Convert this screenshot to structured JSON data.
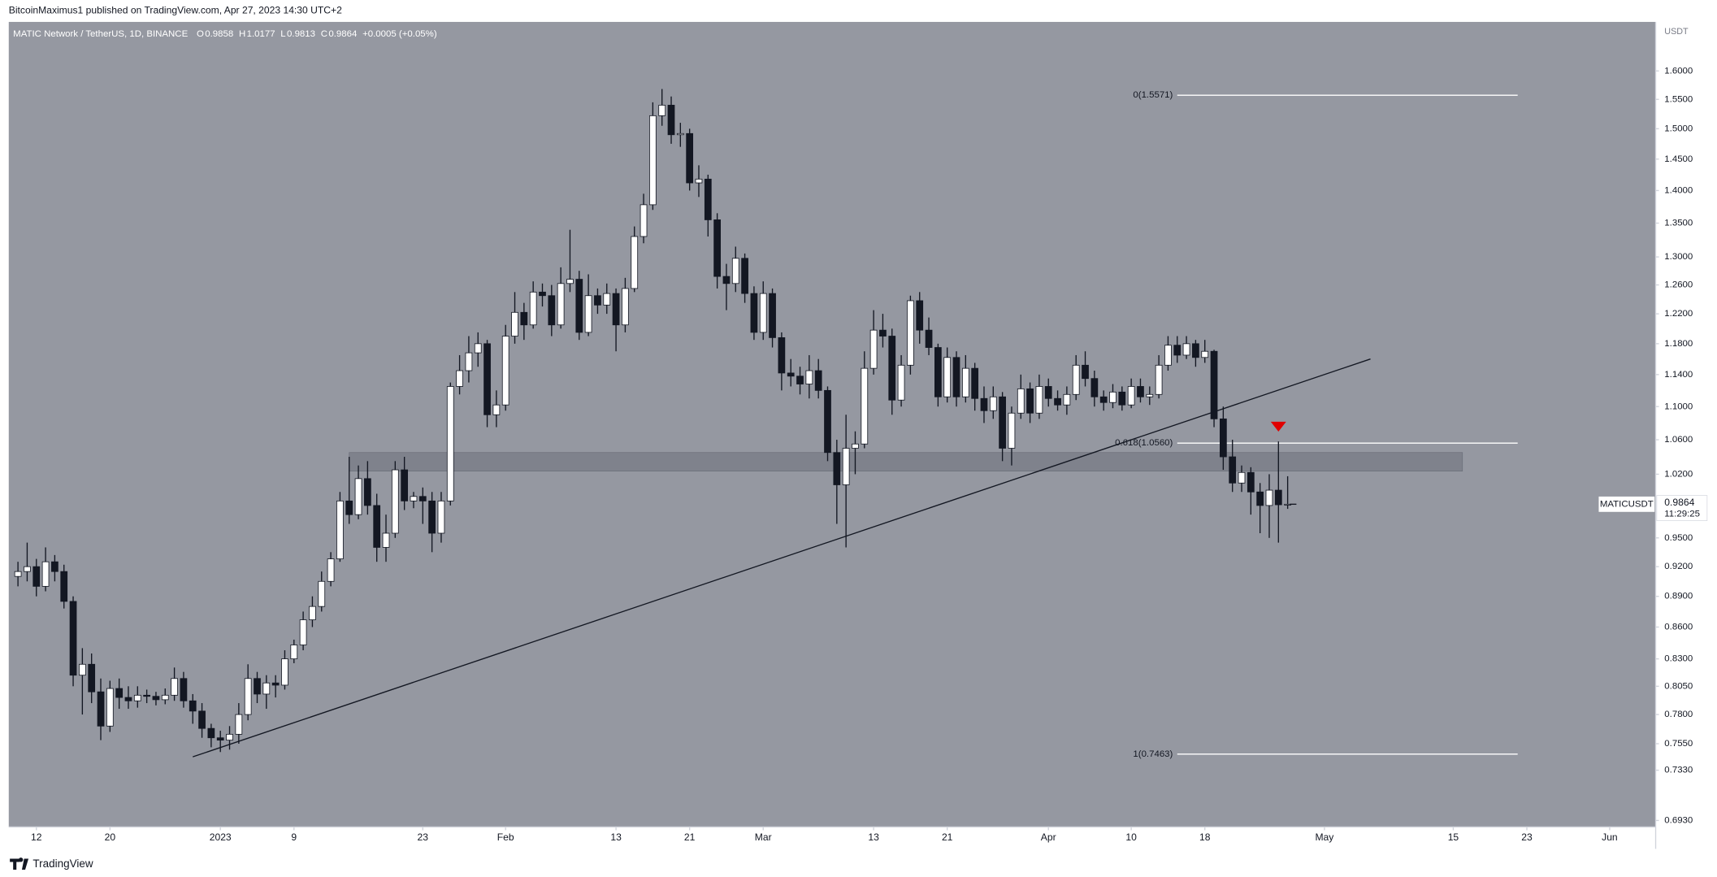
{
  "header": {
    "publisher": "BitcoinMaximus1 published on TradingView.com, Apr 27, 2023 14:30 UTC+2",
    "footer": "TradingView"
  },
  "chart_data": {
    "type": "candlestick",
    "symbol": "MATIC Network / TetherUS, 1D, BINANCE",
    "ohlc_keys": [
      "O",
      "H",
      "L",
      "C"
    ],
    "change": "+0.0005 (+0.05%)",
    "currency": "USDT",
    "symbol_tag": "MATICUSDT",
    "countdown": "11:29:25",
    "log_scale": true,
    "up_color": "#ffffff",
    "down_color": "#131722",
    "ylim": [
      0.688,
      1.69
    ],
    "yticks": [
      {
        "value": 1.6,
        "label": "1.6000"
      },
      {
        "value": 1.55,
        "label": "1.5500"
      },
      {
        "value": 1.5,
        "label": "1.5000"
      },
      {
        "value": 1.45,
        "label": "1.4500"
      },
      {
        "value": 1.4,
        "label": "1.4000"
      },
      {
        "value": 1.35,
        "label": "1.3500"
      },
      {
        "value": 1.3,
        "label": "1.3000"
      },
      {
        "value": 1.26,
        "label": "1.2600"
      },
      {
        "value": 1.22,
        "label": "1.2200"
      },
      {
        "value": 1.18,
        "label": "1.1800"
      },
      {
        "value": 1.14,
        "label": "1.1400"
      },
      {
        "value": 1.1,
        "label": "1.1000"
      },
      {
        "value": 1.06,
        "label": "1.0600"
      },
      {
        "value": 1.02,
        "label": "1.0200"
      },
      {
        "value": 0.95,
        "label": "0.9500"
      },
      {
        "value": 0.92,
        "label": "0.9200"
      },
      {
        "value": 0.89,
        "label": "0.8900"
      },
      {
        "value": 0.86,
        "label": "0.8600"
      },
      {
        "value": 0.83,
        "label": "0.8300"
      },
      {
        "value": 0.805,
        "label": "0.8050"
      },
      {
        "value": 0.78,
        "label": "0.7800"
      },
      {
        "value": 0.755,
        "label": "0.7550"
      },
      {
        "value": 0.733,
        "label": "0.7330"
      },
      {
        "value": 0.693,
        "label": "0.6930"
      }
    ],
    "xlim": [
      "12-09",
      "06-06"
    ],
    "xticks": [
      {
        "value": "12-12",
        "label": "12"
      },
      {
        "value": "12-20",
        "label": "20"
      },
      {
        "value": "01-01",
        "label": "2023"
      },
      {
        "value": "01-09",
        "label": "9"
      },
      {
        "value": "01-23",
        "label": "23"
      },
      {
        "value": "02-01",
        "label": "Feb"
      },
      {
        "value": "02-13",
        "label": "13"
      },
      {
        "value": "02-21",
        "label": "21"
      },
      {
        "value": "03-01",
        "label": "Mar"
      },
      {
        "value": "03-13",
        "label": "13"
      },
      {
        "value": "03-21",
        "label": "21"
      },
      {
        "value": "04-01",
        "label": "Apr"
      },
      {
        "value": "04-10",
        "label": "10"
      },
      {
        "value": "04-18",
        "label": "18"
      },
      {
        "value": "05-01",
        "label": "May"
      },
      {
        "value": "05-15",
        "label": "15"
      },
      {
        "value": "05-23",
        "label": "23"
      },
      {
        "value": "06-01",
        "label": "Jun"
      }
    ],
    "x": [
      "12-10",
      "12-11",
      "12-12",
      "12-13",
      "12-14",
      "12-15",
      "12-16",
      "12-17",
      "12-18",
      "12-19",
      "12-20",
      "12-21",
      "12-22",
      "12-23",
      "12-24",
      "12-25",
      "12-26",
      "12-27",
      "12-28",
      "12-29",
      "12-30",
      "12-31",
      "01-01",
      "01-02",
      "01-03",
      "01-04",
      "01-05",
      "01-06",
      "01-07",
      "01-08",
      "01-09",
      "01-10",
      "01-11",
      "01-12",
      "01-13",
      "01-14",
      "01-15",
      "01-16",
      "01-17",
      "01-18",
      "01-19",
      "01-20",
      "01-21",
      "01-22",
      "01-23",
      "01-24",
      "01-25",
      "01-26",
      "01-27",
      "01-28",
      "01-29",
      "01-30",
      "01-31",
      "02-01",
      "02-02",
      "02-03",
      "02-04",
      "02-05",
      "02-06",
      "02-07",
      "02-08",
      "02-09",
      "02-10",
      "02-11",
      "02-12",
      "02-13",
      "02-14",
      "02-15",
      "02-16",
      "02-17",
      "02-18",
      "02-19",
      "02-20",
      "02-21",
      "02-22",
      "02-23",
      "02-24",
      "02-25",
      "02-26",
      "02-27",
      "02-28",
      "03-01",
      "03-02",
      "03-03",
      "03-04",
      "03-05",
      "03-06",
      "03-07",
      "03-08",
      "03-09",
      "03-10",
      "03-11",
      "03-12",
      "03-13",
      "03-14",
      "03-15",
      "03-16",
      "03-17",
      "03-18",
      "03-19",
      "03-20",
      "03-21",
      "03-22",
      "03-23",
      "03-24",
      "03-25",
      "03-26",
      "03-27",
      "03-28",
      "03-29",
      "03-30",
      "03-31",
      "04-01",
      "04-02",
      "04-03",
      "04-04",
      "04-05",
      "04-06",
      "04-07",
      "04-08",
      "04-09",
      "04-10",
      "04-11",
      "04-12",
      "04-13",
      "04-14",
      "04-15",
      "04-16",
      "04-17",
      "04-18",
      "04-19",
      "04-20",
      "04-21",
      "04-22",
      "04-23",
      "04-24",
      "04-25",
      "04-26",
      "04-27"
    ],
    "ohlc": [
      [
        0.91,
        0.925,
        0.9,
        0.915
      ],
      [
        0.915,
        0.945,
        0.905,
        0.92
      ],
      [
        0.92,
        0.928,
        0.89,
        0.9
      ],
      [
        0.9,
        0.94,
        0.895,
        0.925
      ],
      [
        0.925,
        0.932,
        0.905,
        0.915
      ],
      [
        0.915,
        0.922,
        0.878,
        0.885
      ],
      [
        0.885,
        0.89,
        0.805,
        0.815
      ],
      [
        0.815,
        0.84,
        0.78,
        0.825
      ],
      [
        0.825,
        0.835,
        0.79,
        0.8
      ],
      [
        0.8,
        0.812,
        0.758,
        0.77
      ],
      [
        0.77,
        0.81,
        0.765,
        0.803
      ],
      [
        0.803,
        0.812,
        0.785,
        0.795
      ],
      [
        0.795,
        0.805,
        0.785,
        0.792
      ],
      [
        0.792,
        0.805,
        0.786,
        0.797
      ],
      [
        0.797,
        0.802,
        0.79,
        0.796
      ],
      [
        0.796,
        0.8,
        0.788,
        0.793
      ],
      [
        0.793,
        0.803,
        0.789,
        0.797
      ],
      [
        0.797,
        0.822,
        0.792,
        0.812
      ],
      [
        0.812,
        0.818,
        0.786,
        0.792
      ],
      [
        0.792,
        0.798,
        0.772,
        0.783
      ],
      [
        0.783,
        0.79,
        0.76,
        0.768
      ],
      [
        0.768,
        0.772,
        0.752,
        0.76
      ],
      [
        0.76,
        0.766,
        0.748,
        0.758
      ],
      [
        0.758,
        0.77,
        0.75,
        0.763
      ],
      [
        0.763,
        0.79,
        0.755,
        0.78
      ],
      [
        0.78,
        0.825,
        0.775,
        0.812
      ],
      [
        0.812,
        0.818,
        0.79,
        0.798
      ],
      [
        0.798,
        0.815,
        0.785,
        0.808
      ],
      [
        0.808,
        0.815,
        0.795,
        0.806
      ],
      [
        0.806,
        0.838,
        0.802,
        0.83
      ],
      [
        0.83,
        0.848,
        0.826,
        0.843
      ],
      [
        0.843,
        0.875,
        0.838,
        0.867
      ],
      [
        0.867,
        0.89,
        0.86,
        0.88
      ],
      [
        0.88,
        0.915,
        0.875,
        0.905
      ],
      [
        0.905,
        0.935,
        0.9,
        0.928
      ],
      [
        0.928,
        1.0,
        0.925,
        0.99
      ],
      [
        0.99,
        1.04,
        0.965,
        0.975
      ],
      [
        0.975,
        1.03,
        0.97,
        1.015
      ],
      [
        1.015,
        1.035,
        0.975,
        0.985
      ],
      [
        0.985,
        0.998,
        0.925,
        0.94
      ],
      [
        0.94,
        0.975,
        0.925,
        0.955
      ],
      [
        0.955,
        1.035,
        0.95,
        1.025
      ],
      [
        1.025,
        1.04,
        0.98,
        0.99
      ],
      [
        0.99,
        1.0,
        0.982,
        0.995
      ],
      [
        0.995,
        1.005,
        0.965,
        0.99
      ],
      [
        0.99,
        1.0,
        0.935,
        0.955
      ],
      [
        0.955,
        1.0,
        0.945,
        0.99
      ],
      [
        0.99,
        1.13,
        0.985,
        1.125
      ],
      [
        1.125,
        1.165,
        1.115,
        1.145
      ],
      [
        1.145,
        1.19,
        1.13,
        1.168
      ],
      [
        1.168,
        1.195,
        1.15,
        1.18
      ],
      [
        1.18,
        1.185,
        1.075,
        1.09
      ],
      [
        1.09,
        1.12,
        1.075,
        1.102
      ],
      [
        1.102,
        1.205,
        1.095,
        1.19
      ],
      [
        1.19,
        1.25,
        1.18,
        1.222
      ],
      [
        1.222,
        1.235,
        1.185,
        1.205
      ],
      [
        1.205,
        1.265,
        1.2,
        1.25
      ],
      [
        1.25,
        1.262,
        1.23,
        1.245
      ],
      [
        1.245,
        1.26,
        1.19,
        1.205
      ],
      [
        1.205,
        1.285,
        1.2,
        1.262
      ],
      [
        1.262,
        1.34,
        1.25,
        1.268
      ],
      [
        1.268,
        1.28,
        1.185,
        1.195
      ],
      [
        1.195,
        1.275,
        1.19,
        1.245
      ],
      [
        1.245,
        1.255,
        1.22,
        1.232
      ],
      [
        1.232,
        1.262,
        1.22,
        1.248
      ],
      [
        1.248,
        1.255,
        1.17,
        1.205
      ],
      [
        1.205,
        1.27,
        1.195,
        1.255
      ],
      [
        1.255,
        1.345,
        1.25,
        1.33
      ],
      [
        1.33,
        1.395,
        1.32,
        1.378
      ],
      [
        1.378,
        1.545,
        1.37,
        1.522
      ],
      [
        1.522,
        1.568,
        1.505,
        1.54
      ],
      [
        1.54,
        1.555,
        1.475,
        1.49
      ],
      [
        1.49,
        1.51,
        1.47,
        1.492
      ],
      [
        1.492,
        1.5,
        1.4,
        1.412
      ],
      [
        1.412,
        1.44,
        1.39,
        1.418
      ],
      [
        1.418,
        1.425,
        1.33,
        1.355
      ],
      [
        1.355,
        1.365,
        1.255,
        1.272
      ],
      [
        1.272,
        1.29,
        1.225,
        1.262
      ],
      [
        1.262,
        1.315,
        1.25,
        1.298
      ],
      [
        1.298,
        1.305,
        1.235,
        1.248
      ],
      [
        1.248,
        1.258,
        1.185,
        1.195
      ],
      [
        1.195,
        1.265,
        1.185,
        1.248
      ],
      [
        1.248,
        1.255,
        1.175,
        1.188
      ],
      [
        1.188,
        1.195,
        1.12,
        1.142
      ],
      [
        1.142,
        1.16,
        1.125,
        1.138
      ],
      [
        1.138,
        1.15,
        1.115,
        1.128
      ],
      [
        1.128,
        1.165,
        1.11,
        1.145
      ],
      [
        1.145,
        1.16,
        1.11,
        1.12
      ],
      [
        1.12,
        1.125,
        1.035,
        1.045
      ],
      [
        1.045,
        1.06,
        0.965,
        1.008
      ],
      [
        1.008,
        1.09,
        0.94,
        1.05
      ],
      [
        1.05,
        1.07,
        1.02,
        1.055
      ],
      [
        1.055,
        1.17,
        1.05,
        1.148
      ],
      [
        1.148,
        1.225,
        1.14,
        1.198
      ],
      [
        1.198,
        1.22,
        1.175,
        1.19
      ],
      [
        1.19,
        1.2,
        1.09,
        1.108
      ],
      [
        1.108,
        1.165,
        1.1,
        1.152
      ],
      [
        1.152,
        1.245,
        1.14,
        1.238
      ],
      [
        1.238,
        1.25,
        1.18,
        1.198
      ],
      [
        1.198,
        1.215,
        1.165,
        1.175
      ],
      [
        1.175,
        1.18,
        1.1,
        1.112
      ],
      [
        1.112,
        1.175,
        1.105,
        1.162
      ],
      [
        1.162,
        1.17,
        1.1,
        1.112
      ],
      [
        1.112,
        1.165,
        1.105,
        1.148
      ],
      [
        1.148,
        1.155,
        1.095,
        1.11
      ],
      [
        1.11,
        1.125,
        1.08,
        1.095
      ],
      [
        1.095,
        1.125,
        1.085,
        1.112
      ],
      [
        1.112,
        1.118,
        1.035,
        1.05
      ],
      [
        1.05,
        1.1,
        1.03,
        1.092
      ],
      [
        1.092,
        1.14,
        1.085,
        1.122
      ],
      [
        1.122,
        1.13,
        1.08,
        1.092
      ],
      [
        1.092,
        1.14,
        1.085,
        1.125
      ],
      [
        1.125,
        1.135,
        1.1,
        1.11
      ],
      [
        1.11,
        1.12,
        1.095,
        1.102
      ],
      [
        1.102,
        1.125,
        1.09,
        1.115
      ],
      [
        1.115,
        1.165,
        1.108,
        1.152
      ],
      [
        1.152,
        1.17,
        1.125,
        1.135
      ],
      [
        1.135,
        1.145,
        1.1,
        1.112
      ],
      [
        1.112,
        1.12,
        1.095,
        1.105
      ],
      [
        1.105,
        1.128,
        1.098,
        1.118
      ],
      [
        1.118,
        1.125,
        1.095,
        1.102
      ],
      [
        1.102,
        1.135,
        1.098,
        1.125
      ],
      [
        1.125,
        1.135,
        1.105,
        1.112
      ],
      [
        1.112,
        1.125,
        1.102,
        1.115
      ],
      [
        1.115,
        1.165,
        1.11,
        1.152
      ],
      [
        1.152,
        1.19,
        1.145,
        1.178
      ],
      [
        1.178,
        1.19,
        1.155,
        1.165
      ],
      [
        1.165,
        1.19,
        1.16,
        1.18
      ],
      [
        1.18,
        1.185,
        1.15,
        1.162
      ],
      [
        1.162,
        1.185,
        1.155,
        1.17
      ],
      [
        1.17,
        1.172,
        1.075,
        1.085
      ],
      [
        1.085,
        1.1,
        1.025,
        1.04
      ],
      [
        1.04,
        1.06,
        1.0,
        1.01
      ],
      [
        1.01,
        1.03,
        1.0,
        1.022
      ],
      [
        1.022,
        1.028,
        0.975,
        1.0
      ],
      [
        1.0,
        1.01,
        0.955,
        0.985
      ],
      [
        0.985,
        1.02,
        0.95,
        1.002
      ],
      [
        1.002,
        1.058,
        0.945,
        0.9858
      ],
      [
        0.9858,
        1.0177,
        0.9813,
        0.9864
      ]
    ],
    "zone": {
      "x": [
        "01-15",
        "05-16"
      ],
      "ylim": [
        1.0235,
        1.045
      ],
      "color": "#787b86"
    },
    "trendline": {
      "x": [
        "12-29",
        "05-06"
      ],
      "values": [
        0.744,
        1.16
      ],
      "color": "#131722"
    },
    "fib": {
      "x": [
        "04-15",
        "05-22"
      ],
      "color": "#ffffff",
      "levels": [
        {
          "value": 1.5571,
          "label": "0(1.5571)"
        },
        {
          "value": 1.056,
          "label": "0.618(1.0560)"
        },
        {
          "value": 0.7463,
          "label": "1(0.7463)"
        }
      ]
    },
    "marker": {
      "x": "04-26",
      "value": 1.075,
      "color": "#e00000"
    }
  }
}
